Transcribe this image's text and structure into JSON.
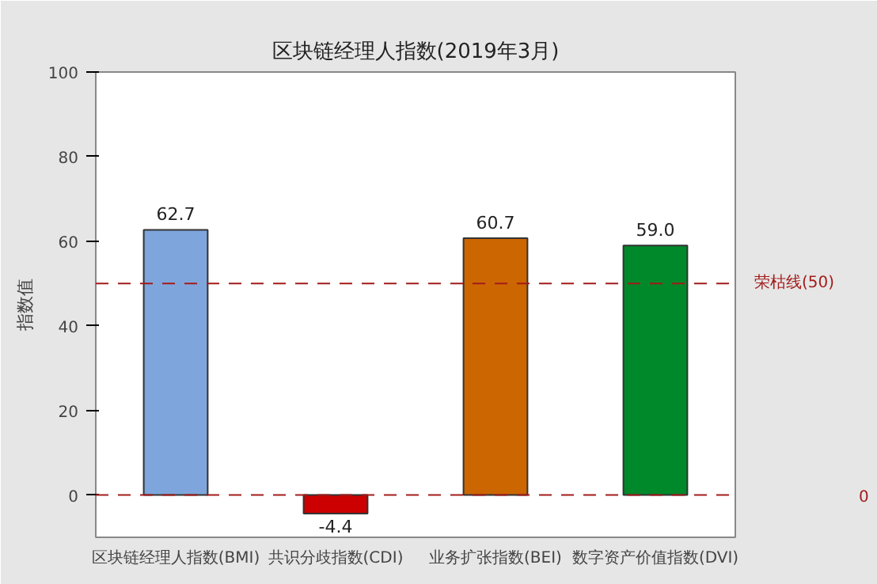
{
  "chart_data": {
    "type": "bar",
    "title": "区块链经理人指数(2019年3月)",
    "ylabel": "指数值",
    "categories": [
      "区块链经理人指数(BMI)",
      "共识分歧指数(CDI)",
      "业务扩张指数(BEI)",
      "数字资产价值指数(DVI)"
    ],
    "values": [
      62.7,
      -4.4,
      60.7,
      59.0
    ],
    "colors": [
      "#7fa6dc",
      "#cc0000",
      "#cc6600",
      "#00892a"
    ],
    "ylim": [
      -10,
      100
    ],
    "yticks": [
      0,
      20,
      40,
      60,
      80,
      100
    ],
    "ref_lines": [
      {
        "axis": "y",
        "value": 50,
        "label": "荣枯线(50)",
        "color": "#a31b1b",
        "line_style": "dashed"
      },
      {
        "axis": "y",
        "value": 0,
        "label": "0",
        "color": "#a31b1b",
        "line_style": "dashed"
      }
    ],
    "value_labels": [
      "62.7",
      "-4.4",
      "60.7",
      "59.0"
    ]
  }
}
